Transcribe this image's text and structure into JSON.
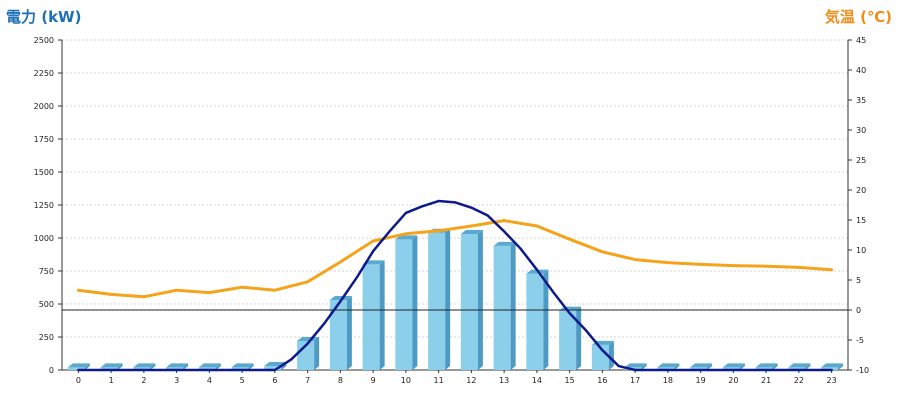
{
  "chart_data": {
    "type": "bar",
    "left_axis_title": "電力 (kW)",
    "right_axis_title": "気温 (℃)",
    "categories": [
      "0",
      "1",
      "2",
      "3",
      "4",
      "5",
      "6",
      "7",
      "8",
      "9",
      "10",
      "11",
      "12",
      "13",
      "14",
      "15",
      "16",
      "17",
      "18",
      "19",
      "20",
      "21",
      "22",
      "23"
    ],
    "left_ylim": [
      0,
      2500
    ],
    "left_ticks": [
      "0",
      "250",
      "500",
      "750",
      "1000",
      "1250",
      "1500",
      "1750",
      "2000",
      "2250",
      "2500"
    ],
    "right_ylim": [
      -10,
      45
    ],
    "right_ticks": [
      "-10",
      "-5",
      "0",
      "5",
      "10",
      "15",
      "20",
      "25",
      "30",
      "35",
      "40",
      "45"
    ],
    "grid": true,
    "bars": {
      "axis": "left",
      "color": "#8ccfea",
      "values": [
        20,
        20,
        20,
        20,
        20,
        20,
        30,
        220,
        530,
        800,
        990,
        1040,
        1030,
        940,
        730,
        450,
        190,
        20,
        20,
        20,
        20,
        20,
        20,
        20
      ]
    },
    "line_power": {
      "axis": "left",
      "color": "#0d1a8c",
      "points": [
        [
          0,
          0
        ],
        [
          1,
          0
        ],
        [
          2,
          0
        ],
        [
          3,
          0
        ],
        [
          4,
          0
        ],
        [
          5,
          0
        ],
        [
          6,
          0
        ],
        [
          6.5,
          80
        ],
        [
          7,
          200
        ],
        [
          7.5,
          350
        ],
        [
          8,
          520
        ],
        [
          8.5,
          700
        ],
        [
          9,
          900
        ],
        [
          9.5,
          1050
        ],
        [
          10,
          1190
        ],
        [
          10.5,
          1240
        ],
        [
          11,
          1280
        ],
        [
          11.5,
          1270
        ],
        [
          12,
          1230
        ],
        [
          12.5,
          1170
        ],
        [
          13,
          1050
        ],
        [
          13.5,
          920
        ],
        [
          14,
          760
        ],
        [
          14.5,
          590
        ],
        [
          15,
          430
        ],
        [
          15.5,
          300
        ],
        [
          16,
          150
        ],
        [
          16.5,
          30
        ],
        [
          17,
          0
        ],
        [
          18,
          0
        ],
        [
          19,
          0
        ],
        [
          20,
          0
        ],
        [
          21,
          0
        ],
        [
          22,
          0
        ],
        [
          23,
          0
        ]
      ]
    },
    "line_temperature": {
      "axis": "right",
      "color": "#f5a31a",
      "points": [
        [
          0,
          3.3
        ],
        [
          1,
          2.6
        ],
        [
          2,
          2.2
        ],
        [
          3,
          3.3
        ],
        [
          4,
          2.9
        ],
        [
          5,
          3.8
        ],
        [
          6,
          3.3
        ],
        [
          7,
          4.7
        ],
        [
          8,
          8.0
        ],
        [
          9,
          11.5
        ],
        [
          10,
          12.7
        ],
        [
          11,
          13.2
        ],
        [
          12,
          14.0
        ],
        [
          13,
          14.9
        ],
        [
          14,
          14.0
        ],
        [
          15,
          11.8
        ],
        [
          16,
          9.7
        ],
        [
          17,
          8.4
        ],
        [
          18,
          7.9
        ],
        [
          19,
          7.6
        ],
        [
          20,
          7.4
        ],
        [
          21,
          7.3
        ],
        [
          22,
          7.1
        ],
        [
          23,
          6.7
        ]
      ]
    },
    "reference_line": {
      "axis": "right",
      "value": 0
    }
  }
}
